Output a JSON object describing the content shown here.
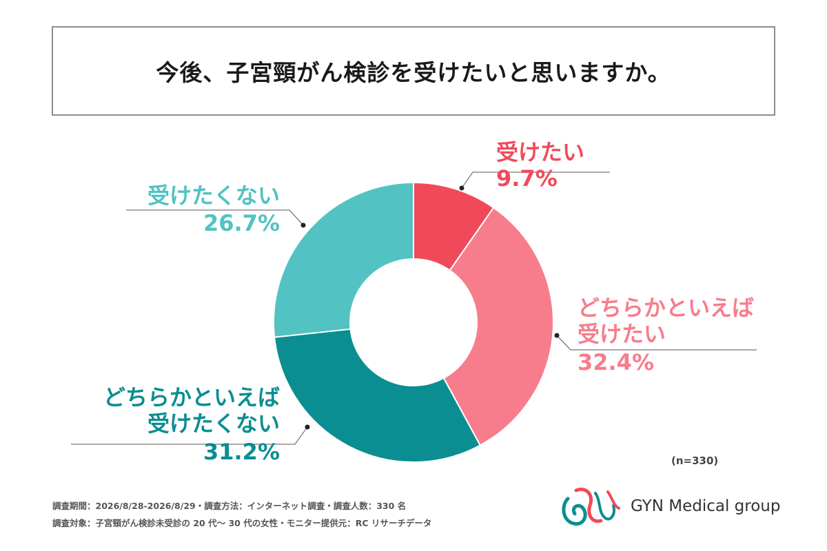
{
  "title": "今後、子宮頸がん検診を受けたいと思いますか。",
  "chart_data": {
    "type": "pie",
    "donut": true,
    "slices": [
      {
        "label": "受けたい",
        "value": 9.7,
        "value_text": "9.7%",
        "color": "#f04a5a"
      },
      {
        "label": "どちらかといえば 受けたい",
        "value": 32.4,
        "value_text": "32.4%",
        "color": "#f77d8c"
      },
      {
        "label": "どちらかといえば 受けたくない",
        "value": 31.2,
        "value_text": "31.2%",
        "color": "#0a8e91"
      },
      {
        "label": "受けたくない",
        "value": 26.7,
        "value_text": "26.7%",
        "color": "#52c2c2"
      }
    ],
    "start": "top, clockwise"
  },
  "labels": {
    "l1_line1": "受けたい",
    "l2_line1": "どちらかといえば",
    "l2_line2": "受けたい",
    "l3_line1": "どちらかといえば",
    "l3_line2": "受けたくない",
    "l4_line1": "受けたくない"
  },
  "n_note": "(n=330)",
  "footer": {
    "line1": "調査期間：2026/8/28-2026/8/29・調査方法：インターネット調査・調査人数：330 名",
    "line2": "調査対象：子宮頸がん検診未受診の 20 代〜 30 代の女性・モニター提供元：RC リサーチデータ"
  },
  "logo": {
    "text": "GYN Medical group",
    "colors": [
      "#f04a5a",
      "#0a8e91"
    ]
  }
}
